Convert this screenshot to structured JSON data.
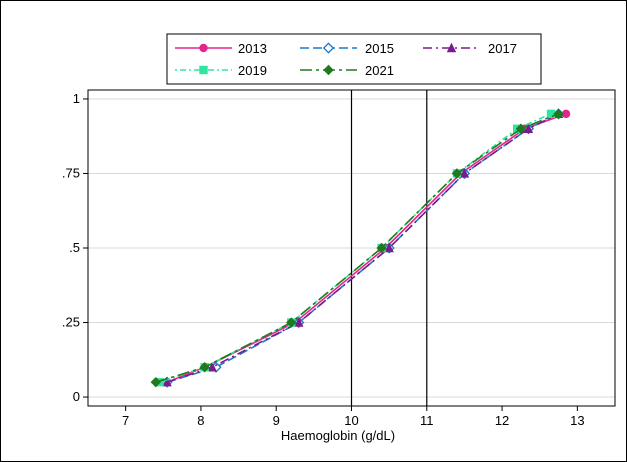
{
  "chart_data": {
    "type": "line",
    "xlabel": "Haemoglobin (g/dL)",
    "ylabel": "",
    "xlim": [
      6.5,
      13.5
    ],
    "ylim": [
      -0.03,
      1.03
    ],
    "x_ticks": [
      7,
      8,
      9,
      10,
      11,
      12,
      13
    ],
    "x_tick_labels": [
      "7",
      "8",
      "9",
      "10",
      "11",
      "12",
      "13"
    ],
    "y_ticks": [
      0,
      0.25,
      0.5,
      0.75,
      1
    ],
    "y_tick_labels": [
      "0",
      ".25",
      ".5",
      ".75",
      "1"
    ],
    "grid": true,
    "legend_position": "top",
    "reference_lines_x": [
      10,
      11
    ],
    "series": [
      {
        "name": "2013",
        "color": "#e6258a",
        "dash": "solid",
        "marker": "circle",
        "points": [
          [
            7.55,
            0.05
          ],
          [
            8.05,
            0.1
          ],
          [
            9.25,
            0.25
          ],
          [
            10.45,
            0.5
          ],
          [
            11.45,
            0.75
          ],
          [
            12.3,
            0.9
          ],
          [
            12.85,
            0.95
          ]
        ]
      },
      {
        "name": "2015",
        "color": "#1f78c8",
        "dash": "long-dash",
        "marker": "diamond-hollow",
        "points": [
          [
            7.55,
            0.05
          ],
          [
            8.2,
            0.1
          ],
          [
            9.3,
            0.25
          ],
          [
            10.5,
            0.5
          ],
          [
            11.5,
            0.75
          ],
          [
            12.35,
            0.9
          ],
          [
            12.75,
            0.95
          ]
        ]
      },
      {
        "name": "2017",
        "color": "#7b1a8c",
        "dash": "dash-dot",
        "marker": "triangle",
        "points": [
          [
            7.55,
            0.05
          ],
          [
            8.15,
            0.1
          ],
          [
            9.3,
            0.25
          ],
          [
            10.5,
            0.5
          ],
          [
            11.5,
            0.75
          ],
          [
            12.35,
            0.9
          ],
          [
            12.75,
            0.95
          ]
        ]
      },
      {
        "name": "2019",
        "color": "#2ee6a0",
        "dash": "dot-dash",
        "marker": "square",
        "points": [
          [
            7.45,
            0.05
          ],
          [
            8.05,
            0.1
          ],
          [
            9.2,
            0.25
          ],
          [
            10.4,
            0.5
          ],
          [
            11.4,
            0.75
          ],
          [
            12.2,
            0.9
          ],
          [
            12.65,
            0.95
          ]
        ]
      },
      {
        "name": "2021",
        "color": "#1f7a1f",
        "dash": "long-dash-dot",
        "marker": "diamond",
        "points": [
          [
            7.4,
            0.05
          ],
          [
            8.05,
            0.1
          ],
          [
            9.2,
            0.25
          ],
          [
            10.4,
            0.5
          ],
          [
            11.4,
            0.75
          ],
          [
            12.25,
            0.9
          ],
          [
            12.75,
            0.95
          ]
        ]
      }
    ]
  }
}
